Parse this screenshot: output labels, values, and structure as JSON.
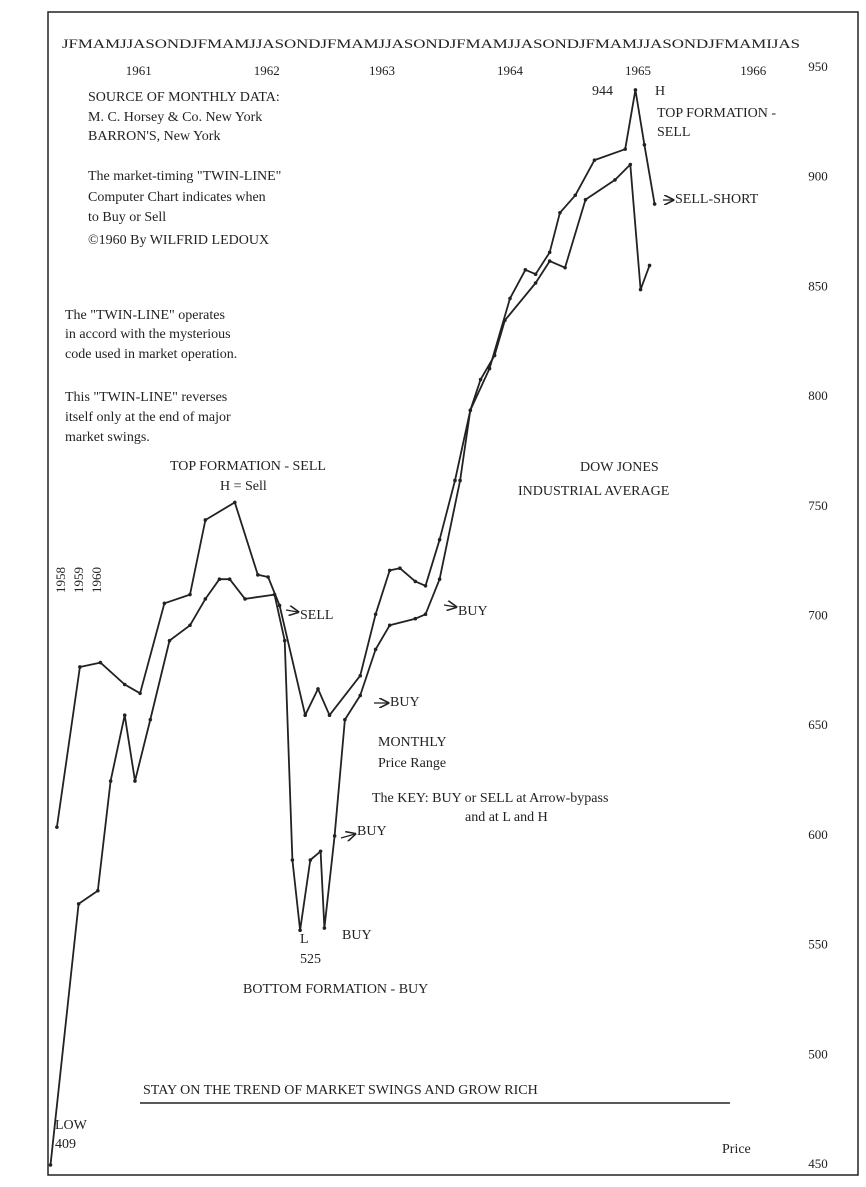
{
  "chart_data": {
    "type": "line",
    "months": "JFMAMJJASONDJFMAMJJASONDJFMAMJJASONDJFMAMJJASONDJFMAMJJASONDJFMAMIJAS",
    "y_label": "Price",
    "xlim": [
      1960.9,
      1966.75
    ],
    "xticks": [
      {
        "value": 1961.6,
        "label": "1961"
      },
      {
        "value": 1962.6,
        "label": "1962"
      },
      {
        "value": 1963.5,
        "label": "1963"
      },
      {
        "value": 1964.5,
        "label": "1964"
      },
      {
        "value": 1965.5,
        "label": "1965"
      },
      {
        "value": 1966.4,
        "label": "1966"
      }
    ],
    "ylim": [
      450,
      950
    ],
    "yticks": [
      950,
      900,
      850,
      800,
      750,
      700,
      650,
      600,
      550,
      500,
      450
    ],
    "grid": false,
    "series": [
      {
        "color": "#222222",
        "x": [
          1960.96,
          1961.14,
          1961.3,
          1961.49,
          1961.61,
          1961.8,
          1962.0,
          1962.12,
          1962.35,
          1962.53,
          1962.61,
          1962.7,
          1962.9,
          1963.0,
          1963.09,
          1963.33,
          1963.45,
          1963.56,
          1963.64,
          1963.76,
          1963.84,
          1963.95,
          1964.07,
          1964.19,
          1964.34,
          1964.5,
          1964.62,
          1964.7,
          1964.81,
          1964.89,
          1965.01,
          1965.16,
          1965.4,
          1965.48,
          1965.55,
          1965.63
        ],
        "values": [
          604,
          677,
          679,
          669,
          665,
          706,
          710,
          744,
          752,
          719,
          718,
          705,
          655,
          667,
          655,
          673,
          701,
          721,
          722,
          716,
          714,
          735,
          762,
          794,
          813,
          845,
          858,
          856,
          866,
          884,
          892,
          908,
          913,
          940,
          915,
          888
        ]
      },
      {
        "color": "#222222",
        "x": [
          1960.91,
          1961.13,
          1961.28,
          1961.38,
          1961.49,
          1961.57,
          1961.69,
          1961.84,
          1962.0,
          1962.12,
          1962.23,
          1962.31,
          1962.43,
          1962.66,
          1962.74,
          1962.8,
          1962.86,
          1962.94,
          1963.02,
          1963.05,
          1963.13,
          1963.21,
          1963.33,
          1963.45,
          1963.56,
          1963.76,
          1963.84,
          1963.95,
          1964.11,
          1964.19,
          1964.27,
          1964.38,
          1964.46,
          1964.7,
          1964.81,
          1964.93,
          1965.09,
          1965.32,
          1965.44,
          1965.52,
          1965.59
        ],
        "values": [
          450,
          569,
          575,
          625,
          655,
          625,
          653,
          689,
          696,
          708,
          717,
          717,
          708,
          710,
          689,
          589,
          557,
          589,
          593,
          558,
          600,
          653,
          664,
          685,
          696,
          699,
          701,
          717,
          762,
          794,
          808,
          819,
          835,
          852,
          862,
          859,
          890,
          899,
          906,
          849,
          860
        ]
      }
    ],
    "annotations": [
      "SOURCE OF MONTHLY DATA:",
      "M. C. Horsey & Co. New York",
      "BARRON'S, New York",
      "The market-timing \"TWIN-LINE\"",
      "Computer Chart indicates when",
      "to Buy or Sell",
      "©1960 By WILFRID LEDOUX",
      "The \"TWIN-LINE\" operates",
      "in accord with the mysterious",
      "code used in market operation.",
      "This \"TWIN-LINE\" reverses",
      "itself only at the end of major",
      "market swings.",
      "TOP FORMATION - SELL",
      "H = Sell",
      "944",
      "H",
      "TOP FORMATION -",
      "SELL",
      "SELL-SHORT",
      "SELL",
      "BUY",
      "BUY",
      "MONTHLY",
      "Price Range",
      "The KEY: BUY or SELL at Arrow-bypass",
      "and at L and H",
      "BUY",
      "L",
      "525",
      "BUY",
      "BOTTOM FORMATION - BUY",
      "DOW JONES",
      "INDUSTRIAL AVERAGE",
      "STAY ON THE TREND OF MARKET SWINGS AND GROW RICH",
      "LOW",
      "409",
      "1958",
      "1959",
      "1960"
    ]
  }
}
